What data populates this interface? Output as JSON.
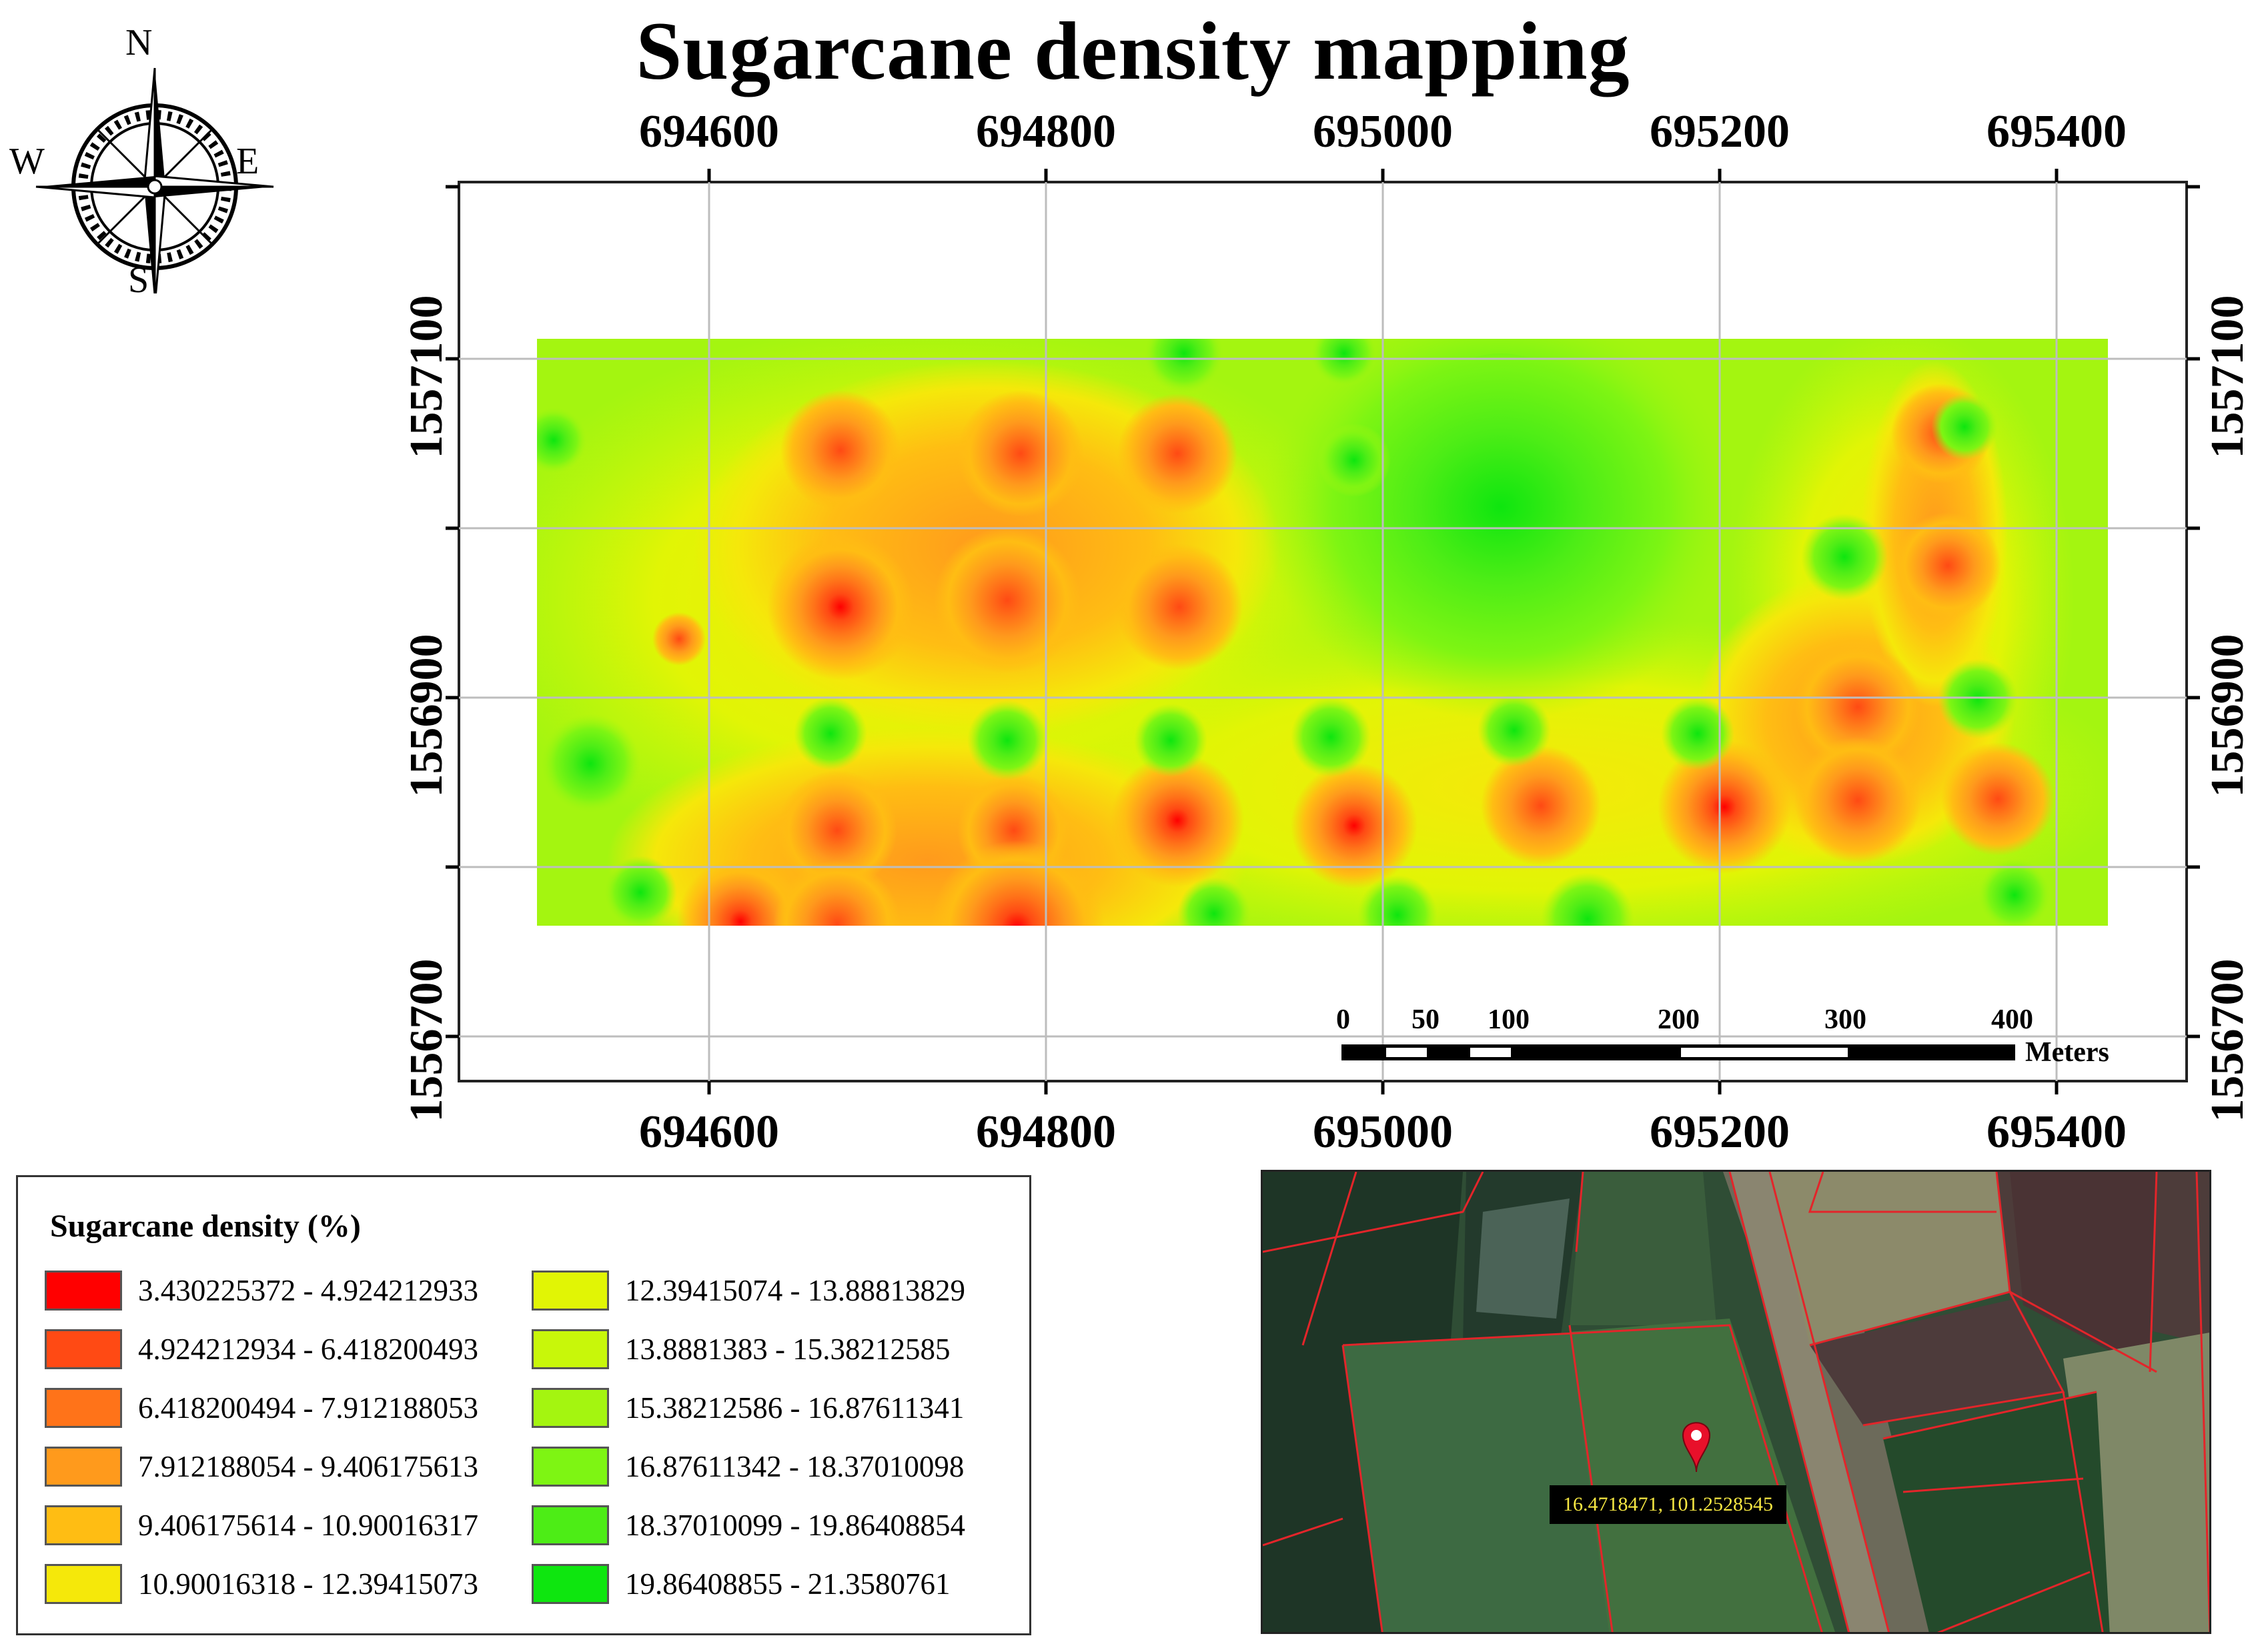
{
  "title": "Sugarcane density mapping",
  "compass": {
    "n": "N",
    "s": "S",
    "e": "E",
    "w": "W"
  },
  "axes": {
    "x_ticks": [
      "694600",
      "694800",
      "695000",
      "695200",
      "695400"
    ],
    "y_ticks": [
      "1557100",
      "1556900",
      "1556700"
    ]
  },
  "scalebar": {
    "labels": [
      "0",
      "50",
      "100",
      "200",
      "300",
      "400"
    ],
    "unit": "Meters"
  },
  "legend": {
    "title": "Sugarcane density (%)",
    "items": [
      {
        "label": "3.430225372 - 4.924212933",
        "color": "#ff0000"
      },
      {
        "label": "4.924212934 - 6.418200493",
        "color": "#ff4a14"
      },
      {
        "label": "6.418200494 - 7.912188053",
        "color": "#ff7319"
      },
      {
        "label": "7.912188054 - 9.406175613",
        "color": "#ff9a1c"
      },
      {
        "label": "9.406175614 - 10.90016317",
        "color": "#ffbd13"
      },
      {
        "label": "10.90016318 - 12.39415073",
        "color": "#f5e80a"
      },
      {
        "label": "12.39415074 - 13.88813829",
        "color": "#e1f505"
      },
      {
        "label": "13.8881383 - 15.38212585",
        "color": "#c8f70a"
      },
      {
        "label": "15.38212586 - 16.87611341",
        "color": "#a4f510"
      },
      {
        "label": "16.87611342 - 18.37010098",
        "color": "#7ef513"
      },
      {
        "label": "18.37010099 - 19.86408854",
        "color": "#4ded16"
      },
      {
        "label": "19.86408855 - 21.3580761",
        "color": "#0ee60f"
      }
    ]
  },
  "inset": {
    "coordinates": "16.4718471, 101.2528545",
    "pin_color": "#e8102a"
  }
}
